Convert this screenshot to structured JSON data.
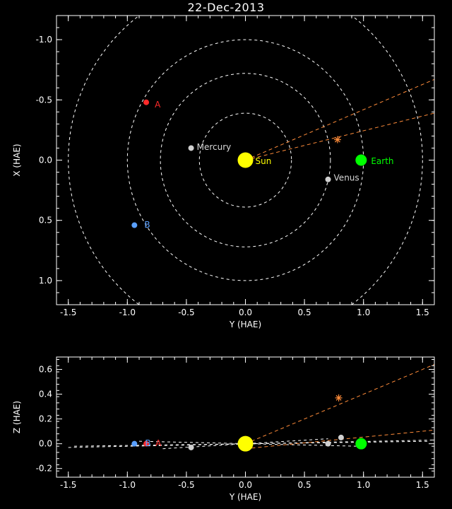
{
  "title": "22-Dec-2013",
  "chart_data": [
    {
      "type": "scatter",
      "name": "top",
      "xlabel": "Y (HAE)",
      "ylabel": "X (HAE)",
      "xlim": [
        -1.6,
        1.6
      ],
      "ylim": [
        1.2,
        -1.2
      ],
      "xticks": [
        -1.5,
        -1.0,
        -0.5,
        0.0,
        0.5,
        1.0,
        1.5
      ],
      "yticks": [
        -1.0,
        -0.5,
        0.0,
        0.5,
        1.0
      ],
      "orbits_radii": [
        0.39,
        0.72,
        1.0,
        1.5
      ],
      "points": [
        {
          "id": "sun",
          "label": "Sun",
          "x": 0.0,
          "y": 0.0,
          "color": "#ffff00",
          "size": "large"
        },
        {
          "id": "mercury",
          "label": "Mercury",
          "x": -0.46,
          "y": -0.1,
          "color": "#d0d0d0",
          "size": "small"
        },
        {
          "id": "venus",
          "label": "Venus",
          "x": 0.7,
          "y": 0.16,
          "color": "#d0d0d0",
          "size": "small"
        },
        {
          "id": "earth",
          "label": "Earth",
          "x": 0.98,
          "y": 0.0,
          "color": "#00ff00",
          "size": "medium"
        },
        {
          "id": "stereo-a",
          "label": "A",
          "x": -0.84,
          "y": -0.48,
          "color": "#ff2a2a",
          "size": "small"
        },
        {
          "id": "stereo-b",
          "label": "B",
          "x": -0.94,
          "y": 0.54,
          "color": "#5aa0ff",
          "size": "small"
        },
        {
          "id": "comet",
          "label": "",
          "x": 0.78,
          "y": -0.17,
          "color": "#ff8c3a",
          "marker": "star"
        }
      ],
      "fov_lines": [
        {
          "from": [
            0.0,
            0.0
          ],
          "to": [
            1.6,
            -0.67
          ]
        },
        {
          "from": [
            0.0,
            0.0
          ],
          "to": [
            1.6,
            -0.39
          ]
        }
      ]
    },
    {
      "type": "scatter",
      "name": "side",
      "xlabel": "Y (HAE)",
      "ylabel": "Z (HAE)",
      "xlim": [
        -1.6,
        1.6
      ],
      "ylim": [
        -0.27,
        0.7
      ],
      "xticks": [
        -1.5,
        -1.0,
        -0.5,
        0.0,
        0.5,
        1.0,
        1.5
      ],
      "yticks": [
        -0.2,
        0.0,
        0.2,
        0.4,
        0.6
      ],
      "points": [
        {
          "id": "sun",
          "x": 0.0,
          "y": 0.0,
          "color": "#ffff00",
          "size": "large"
        },
        {
          "id": "mercury",
          "x": -0.46,
          "y": -0.03,
          "color": "#d0d0d0",
          "size": "small"
        },
        {
          "id": "venus",
          "x": 0.7,
          "y": 0.0,
          "color": "#d0d0d0",
          "size": "small"
        },
        {
          "id": "venus2",
          "x": 0.81,
          "y": 0.05,
          "color": "#d0d0d0",
          "size": "small"
        },
        {
          "id": "earth",
          "x": 0.98,
          "y": 0.0,
          "color": "#00ff00",
          "size": "medium"
        },
        {
          "id": "stereo-a",
          "label": "A",
          "x": -0.84,
          "y": 0.0,
          "color": "#ff2a2a",
          "size": "small"
        },
        {
          "id": "stereo-b",
          "label": "B",
          "x": -0.94,
          "y": 0.0,
          "color": "#5aa0ff",
          "size": "small"
        },
        {
          "id": "comet",
          "x": 0.79,
          "y": 0.37,
          "color": "#ff8c3a",
          "marker": "star"
        }
      ],
      "fov_lines": [
        {
          "from": [
            0.0,
            0.0
          ],
          "to": [
            1.6,
            0.64
          ]
        },
        {
          "from": [
            0.0,
            -0.04
          ],
          "to": [
            1.6,
            0.11
          ]
        }
      ],
      "orbit_lines": [
        [
          [
            -1.5,
            -0.03
          ],
          [
            1.6,
            0.03
          ]
        ],
        [
          [
            -1.45,
            -0.02
          ],
          [
            1.55,
            0.02
          ]
        ],
        [
          [
            -0.9,
            0.02
          ],
          [
            0.95,
            -0.02
          ]
        ],
        [
          [
            -0.7,
            -0.04
          ],
          [
            0.7,
            0.04
          ]
        ]
      ]
    }
  ]
}
